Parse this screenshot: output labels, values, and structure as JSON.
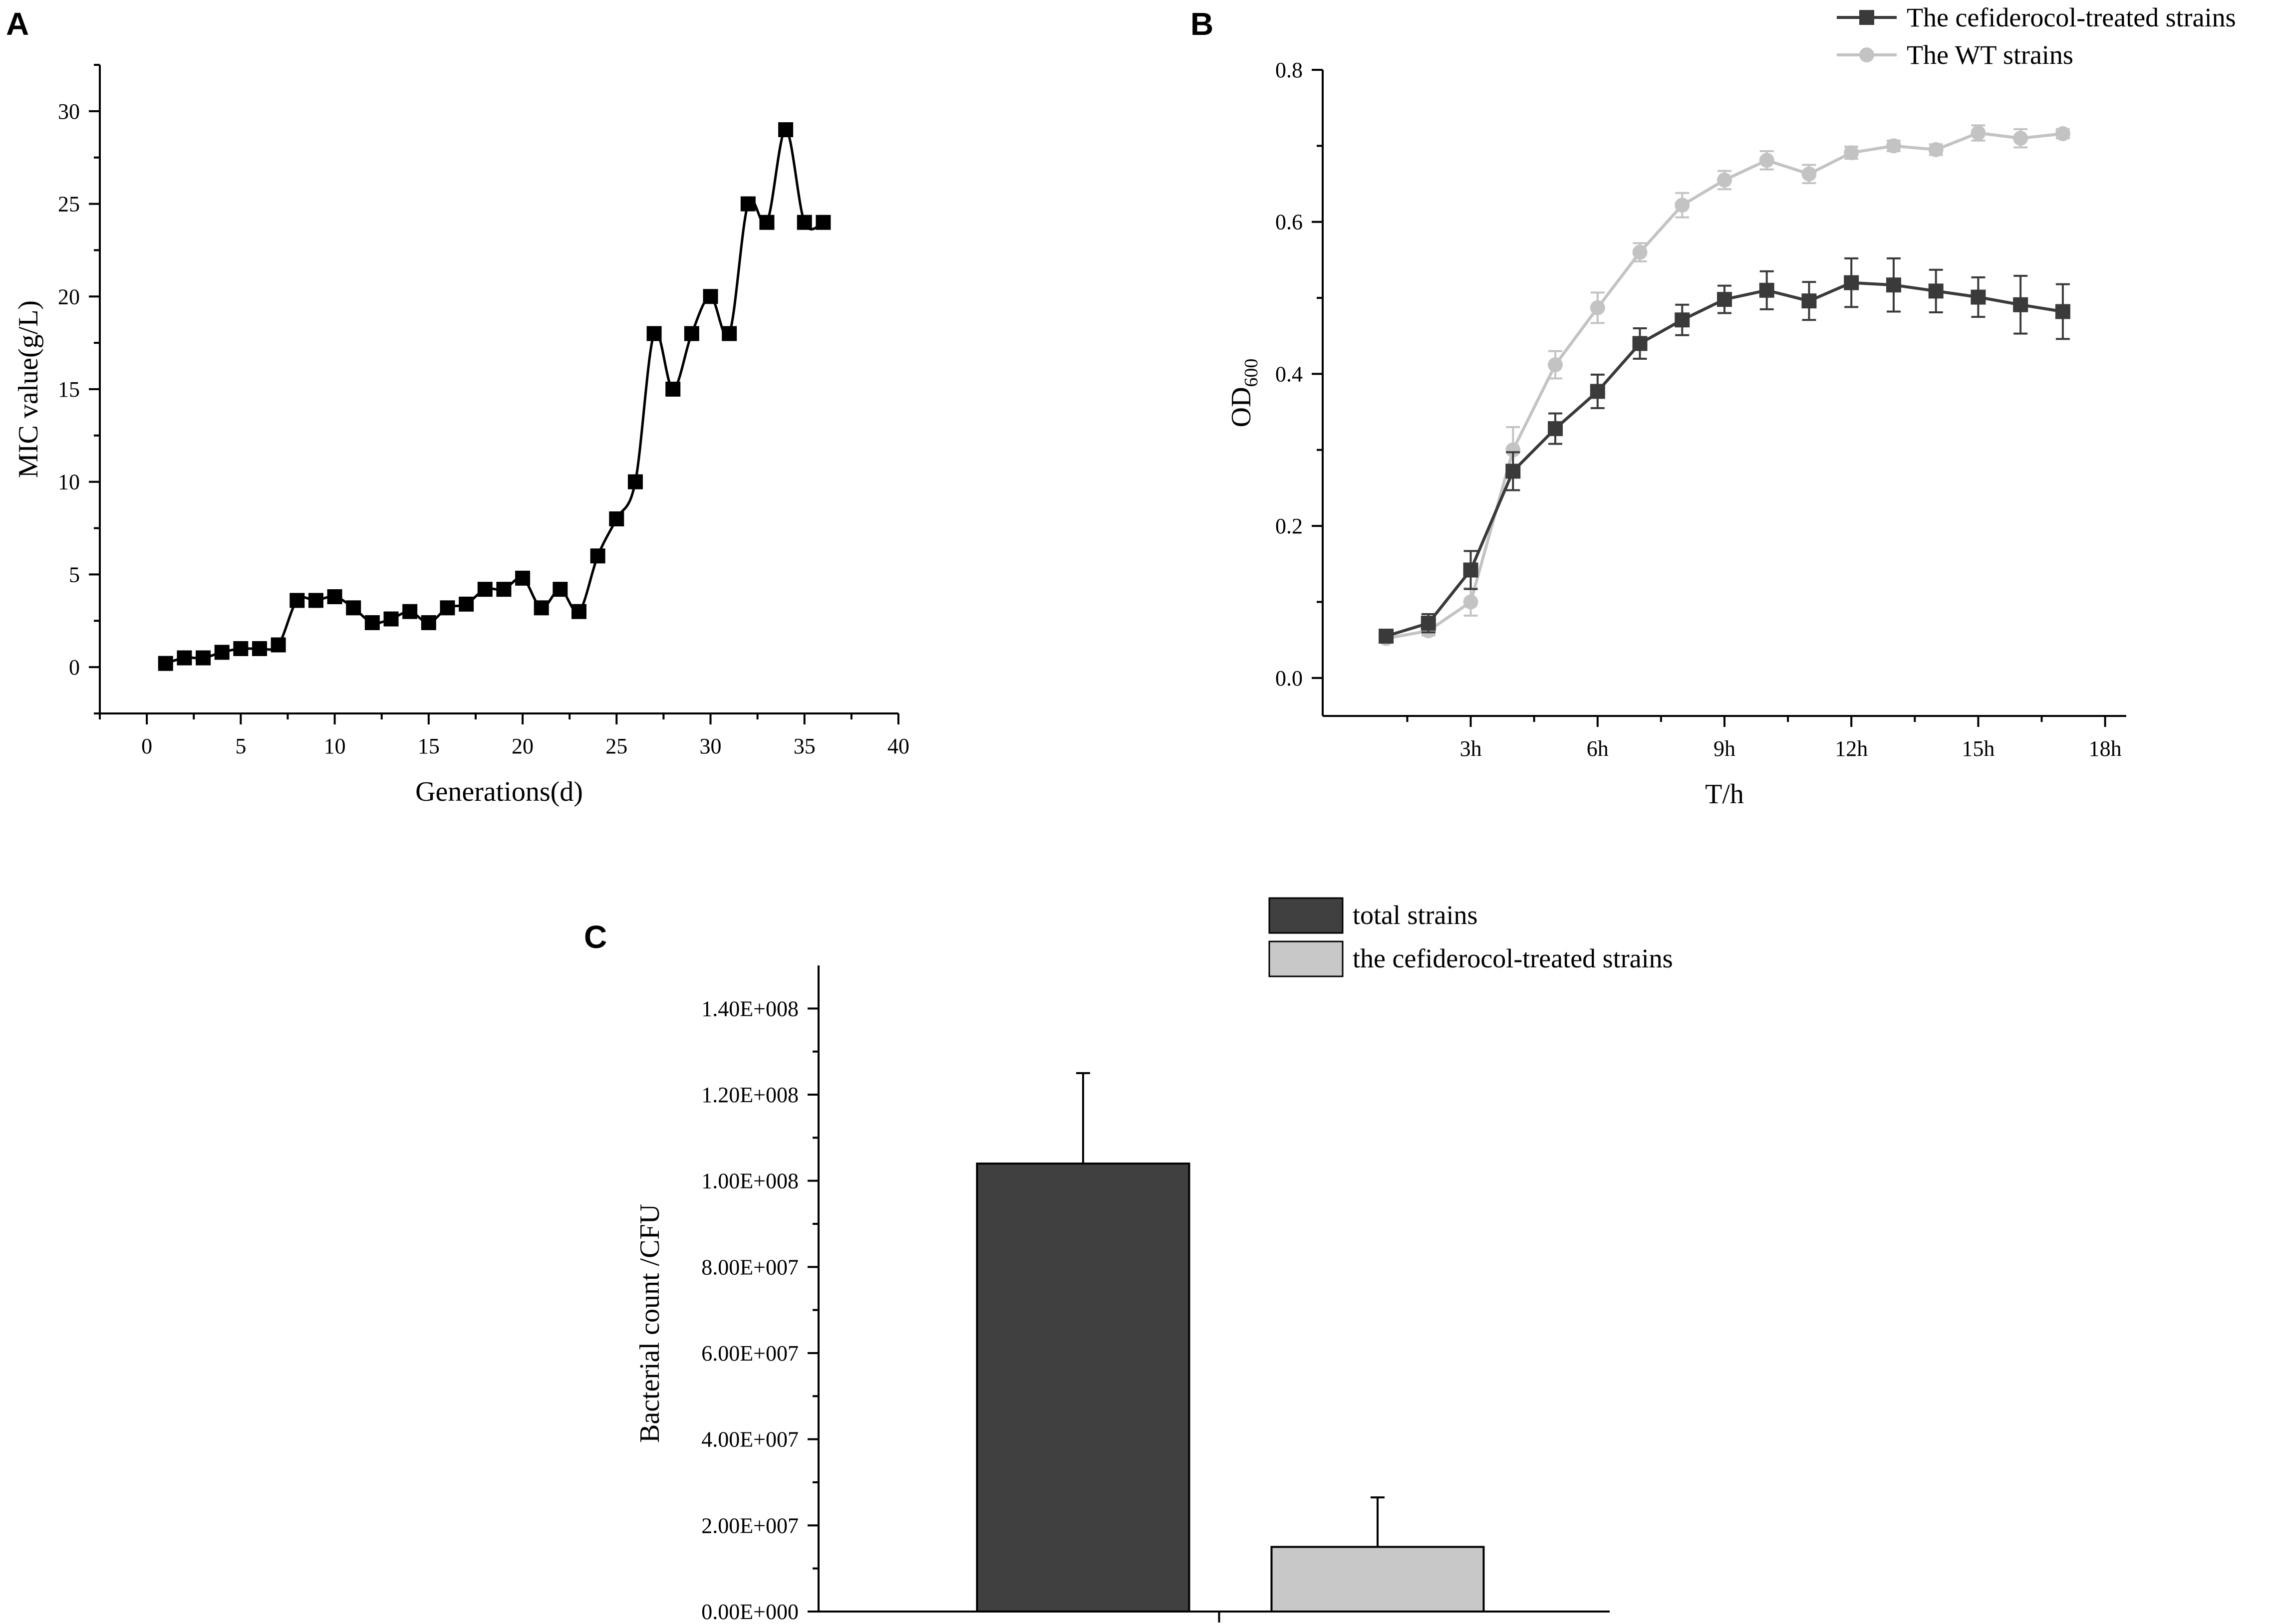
{
  "chart_data": [
    {
      "panel": "A",
      "type": "line",
      "title": "",
      "xlabel": "Generations(d)",
      "ylabel": "MIC value(g/L)",
      "xlim": [
        -2.5,
        40
      ],
      "ylim": [
        -2.5,
        32.5
      ],
      "xticks": [
        0,
        5,
        10,
        15,
        20,
        25,
        30,
        35,
        40
      ],
      "yticks": [
        0,
        5,
        10,
        15,
        20,
        25,
        30
      ],
      "grid": false,
      "smooth": true,
      "series": [
        {
          "name": "MIC",
          "color": "#000000",
          "marker": "square",
          "x": [
            1,
            2,
            3,
            4,
            5,
            6,
            7,
            8,
            9,
            10,
            11,
            12,
            13,
            14,
            15,
            16,
            17,
            18,
            19,
            20,
            21,
            22,
            23,
            24,
            25,
            26,
            27,
            28,
            29,
            30,
            31,
            32,
            33,
            34,
            35,
            36
          ],
          "y": [
            0.2,
            0.5,
            0.5,
            0.8,
            1.0,
            1.0,
            1.2,
            3.6,
            3.6,
            3.8,
            3.2,
            2.4,
            2.6,
            3.0,
            2.4,
            3.2,
            3.4,
            4.2,
            4.2,
            4.8,
            3.2,
            4.2,
            3.0,
            6.0,
            8.0,
            10.0,
            18.0,
            15.0,
            18.0,
            20.0,
            18.0,
            25.0,
            24.0,
            29.0,
            24.0,
            24.0
          ]
        }
      ]
    },
    {
      "panel": "B",
      "type": "line",
      "title": "",
      "xlabel": "T/h",
      "ylabel_main": "OD",
      "ylabel_sub": "600",
      "xlim": [
        -0.5,
        18.5
      ],
      "ylim": [
        -0.05,
        0.8
      ],
      "xticks": [
        3,
        6,
        9,
        12,
        15,
        18
      ],
      "xtick_labels": [
        "3h",
        "6h",
        "9h",
        "12h",
        "15h",
        "18h"
      ],
      "yticks": [
        0.0,
        0.2,
        0.4,
        0.6,
        0.8
      ],
      "ytick_labels": [
        "0.0",
        "0.2",
        "0.4",
        "0.6",
        "0.8"
      ],
      "grid": false,
      "legend_position": "top-right",
      "x": [
        1,
        2,
        3,
        4,
        5,
        6,
        7,
        8,
        9,
        10,
        11,
        12,
        13,
        14,
        15,
        16,
        17
      ],
      "series": [
        {
          "name": "The WT strains",
          "color": "#c3c3c3",
          "marker": "circle",
          "values": [
            0.052,
            0.062,
            0.1,
            0.3,
            0.412,
            0.487,
            0.56,
            0.622,
            0.655,
            0.681,
            0.663,
            0.691,
            0.7,
            0.695,
            0.717,
            0.71,
            0.716
          ],
          "errors": [
            0.004,
            0.006,
            0.018,
            0.03,
            0.018,
            0.02,
            0.012,
            0.016,
            0.012,
            0.012,
            0.012,
            0.008,
            0.007,
            0.007,
            0.01,
            0.012,
            0.006
          ]
        },
        {
          "name": "The cefiderocol-treated strains",
          "color": "#3a3a3a",
          "marker": "square",
          "values": [
            0.055,
            0.072,
            0.142,
            0.272,
            0.328,
            0.377,
            0.44,
            0.471,
            0.498,
            0.51,
            0.496,
            0.52,
            0.517,
            0.509,
            0.501,
            0.491,
            0.482
          ],
          "errors": [
            0.006,
            0.012,
            0.025,
            0.025,
            0.02,
            0.022,
            0.02,
            0.02,
            0.018,
            0.025,
            0.025,
            0.032,
            0.035,
            0.028,
            0.026,
            0.038,
            0.036
          ]
        }
      ]
    },
    {
      "panel": "C",
      "type": "bar",
      "title": "",
      "xlabel": "",
      "ylabel": "Bacterial count /CFU",
      "ylim": [
        0,
        150000000
      ],
      "yticks": [
        0,
        20000000,
        40000000,
        60000000,
        80000000,
        100000000,
        120000000,
        140000000
      ],
      "ytick_labels": [
        "0.00E+000",
        "2.00E+007",
        "4.00E+007",
        "6.00E+007",
        "8.00E+007",
        "1.00E+008",
        "1.20E+008",
        "1.40E+008"
      ],
      "grid": false,
      "legend_position": "top-right",
      "series": [
        {
          "name": "total strains",
          "color": "#404040",
          "value": 104000000,
          "error": 21000000
        },
        {
          "name": "the cefiderocol-treated strains",
          "color": "#c8c8c8",
          "value": 15000000,
          "error": 11500000
        }
      ]
    }
  ]
}
